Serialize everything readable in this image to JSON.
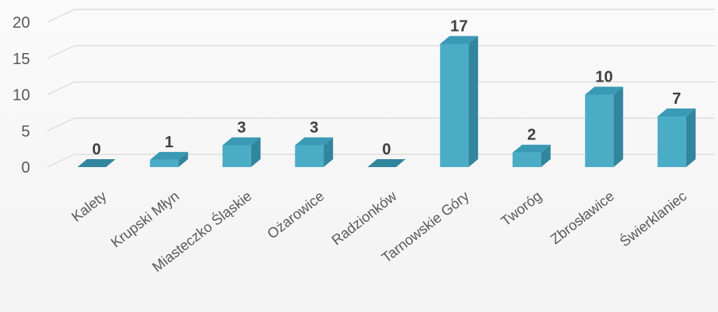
{
  "chart_data": {
    "type": "bar",
    "categories": [
      "Kalety",
      "Krupski Młyn",
      "Miasteczko Śląskie",
      "Ożarowice",
      "Radzionków",
      "Tarnowskie Góry",
      "Tworóg",
      "Zbrosławice",
      "Świerklaniec"
    ],
    "values": [
      0,
      1,
      3,
      3,
      0,
      17,
      2,
      10,
      7
    ],
    "ylim": [
      0,
      20
    ],
    "yticks": [
      "0",
      "5",
      "10",
      "15",
      "20"
    ],
    "grid": true,
    "legend": "none",
    "bar_colors": {
      "front": "#4bacc6",
      "side": "#31859c",
      "top": "#3a9ab5"
    },
    "grid_color": "#d9d9d9"
  }
}
